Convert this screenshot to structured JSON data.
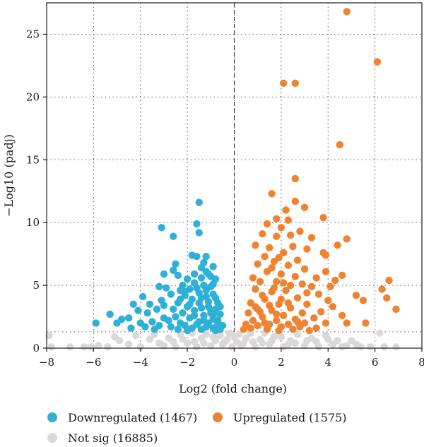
{
  "chart_data": {
    "type": "scatter",
    "title": "",
    "xlabel": "Log2 (fold change)",
    "ylabel": "−Log10 (padj)",
    "xlim": [
      -8,
      8
    ],
    "ylim": [
      0,
      27.5
    ],
    "xticks": [
      -8,
      -6,
      -4,
      -2,
      0,
      2,
      4,
      6,
      8
    ],
    "yticks": [
      0,
      5,
      10,
      15,
      20,
      25
    ],
    "grid": "dotted",
    "threshold_lines": {
      "vertical_x": 0,
      "horizontal_y": 1.3
    },
    "legend_position": "bottom",
    "series": [
      {
        "name": "Downregulated (1467)",
        "color": "#2fb0d6",
        "points": [
          [
            -1.5,
            11.6
          ],
          [
            -1.6,
            9.9
          ],
          [
            -1.5,
            9.2
          ],
          [
            -3.1,
            9.6
          ],
          [
            -2.6,
            8.9
          ],
          [
            -1.8,
            7.4
          ],
          [
            -1.6,
            7.3
          ],
          [
            -1.2,
            7.3
          ],
          [
            -1.3,
            6.8
          ],
          [
            -2.5,
            6.7
          ],
          [
            -2.6,
            6.2
          ],
          [
            -3.0,
            5.9
          ],
          [
            -2.4,
            5.8
          ],
          [
            -1.1,
            5.9
          ],
          [
            -1.0,
            5.7
          ],
          [
            -0.8,
            5.5
          ],
          [
            -1.4,
            5.6
          ],
          [
            -2.0,
            5.5
          ],
          [
            -1.7,
            5.2
          ],
          [
            -2.2,
            5.0
          ],
          [
            -3.2,
            4.9
          ],
          [
            -2.9,
            4.8
          ],
          [
            -2.3,
            4.6
          ],
          [
            -1.9,
            4.7
          ],
          [
            -1.2,
            4.6
          ],
          [
            -2.7,
            4.3
          ],
          [
            -2.1,
            4.2
          ],
          [
            -1.5,
            4.4
          ],
          [
            -0.9,
            4.3
          ],
          [
            -3.9,
            4.1
          ],
          [
            -3.1,
            3.8
          ],
          [
            -1.8,
            3.9
          ],
          [
            -1.1,
            3.7
          ],
          [
            -0.7,
            3.6
          ],
          [
            -2.4,
            3.6
          ],
          [
            -3.6,
            3.5
          ],
          [
            -4.3,
            3.5
          ],
          [
            -3.0,
            3.4
          ],
          [
            -2.0,
            3.3
          ],
          [
            -1.4,
            3.2
          ],
          [
            -0.8,
            3.1
          ],
          [
            -2.6,
            3.1
          ],
          [
            -3.3,
            3.1
          ],
          [
            -4.1,
            3.0
          ],
          [
            -1.7,
            3.0
          ],
          [
            -1.0,
            2.8
          ],
          [
            -2.2,
            2.8
          ],
          [
            -5.3,
            2.7
          ],
          [
            -3.7,
            2.8
          ],
          [
            -0.6,
            2.7
          ],
          [
            -1.3,
            2.6
          ],
          [
            -2.5,
            2.5
          ],
          [
            -3.0,
            2.4
          ],
          [
            -1.9,
            2.4
          ],
          [
            -4.5,
            2.4
          ],
          [
            -4.8,
            2.3
          ],
          [
            -0.9,
            2.3
          ],
          [
            -2.8,
            2.2
          ],
          [
            -3.5,
            2.1
          ],
          [
            -1.5,
            2.1
          ],
          [
            -1.1,
            2.0
          ],
          [
            -2.3,
            2.0
          ],
          [
            -4.0,
            2.0
          ],
          [
            -5.0,
            2.0
          ],
          [
            -5.9,
            2.0
          ],
          [
            -0.7,
            1.9
          ],
          [
            -1.6,
            1.9
          ],
          [
            -3.2,
            1.8
          ],
          [
            -2.1,
            1.8
          ],
          [
            -0.5,
            1.8
          ],
          [
            -1.2,
            1.7
          ],
          [
            -2.7,
            1.7
          ],
          [
            -3.8,
            1.7
          ],
          [
            -4.4,
            1.6
          ],
          [
            -0.9,
            1.6
          ],
          [
            -1.8,
            1.6
          ],
          [
            -0.6,
            1.5
          ],
          [
            -2.4,
            1.5
          ],
          [
            -3.4,
            1.5
          ],
          [
            -1.4,
            1.5
          ],
          [
            -0.8,
            1.4
          ],
          [
            -2.0,
            1.4
          ],
          [
            -1.0,
            4.9
          ],
          [
            -0.9,
            5.1
          ],
          [
            -1.3,
            5.0
          ],
          [
            -1.6,
            4.8
          ],
          [
            -1.2,
            4.1
          ],
          [
            -0.8,
            4.0
          ],
          [
            -1.5,
            3.6
          ],
          [
            -1.7,
            2.6
          ],
          [
            -0.9,
            2.5
          ],
          [
            -1.1,
            3.3
          ],
          [
            -1.4,
            4.0
          ],
          [
            -1.0,
            3.0
          ],
          [
            -0.7,
            2.2
          ],
          [
            -1.3,
            2.2
          ],
          [
            -1.9,
            3.5
          ],
          [
            -2.3,
            3.9
          ],
          [
            -0.6,
            3.3
          ],
          [
            -1.2,
            6.1
          ],
          [
            -1.4,
            6.4
          ],
          [
            -0.9,
            6.5
          ],
          [
            -1.7,
            5.9
          ],
          [
            -2.1,
            4.5
          ],
          [
            -0.8,
            2.9
          ]
        ]
      },
      {
        "name": "Upregulated (1575)",
        "color": "#ee8432",
        "points": [
          [
            4.8,
            26.8
          ],
          [
            6.1,
            22.8
          ],
          [
            2.1,
            21.1
          ],
          [
            2.6,
            21.1
          ],
          [
            4.5,
            16.2
          ],
          [
            2.6,
            13.5
          ],
          [
            1.6,
            12.3
          ],
          [
            2.6,
            11.7
          ],
          [
            2.2,
            11.0
          ],
          [
            3.0,
            11.2
          ],
          [
            1.8,
            10.3
          ],
          [
            2.3,
            10.2
          ],
          [
            3.8,
            10.4
          ],
          [
            1.4,
            9.9
          ],
          [
            2.0,
            9.6
          ],
          [
            2.8,
            9.3
          ],
          [
            1.2,
            9.1
          ],
          [
            2.4,
            9.0
          ],
          [
            3.3,
            8.8
          ],
          [
            1.8,
            8.9
          ],
          [
            4.8,
            8.7
          ],
          [
            4.4,
            8.2
          ],
          [
            0.9,
            8.2
          ],
          [
            1.5,
            8.0
          ],
          [
            2.5,
            8.1
          ],
          [
            3.1,
            7.9
          ],
          [
            2.1,
            7.6
          ],
          [
            3.8,
            7.6
          ],
          [
            1.3,
            7.3
          ],
          [
            3.9,
            7.4
          ],
          [
            2.7,
            7.0
          ],
          [
            1.7,
            6.9
          ],
          [
            1.0,
            6.7
          ],
          [
            2.3,
            6.6
          ],
          [
            3.0,
            6.3
          ],
          [
            3.9,
            6.1
          ],
          [
            4.6,
            5.8
          ],
          [
            1.4,
            6.1
          ],
          [
            2.0,
            5.9
          ],
          [
            2.6,
            5.7
          ],
          [
            3.5,
            5.6
          ],
          [
            4.3,
            5.4
          ],
          [
            0.8,
            5.6
          ],
          [
            1.1,
            5.3
          ],
          [
            1.8,
            5.3
          ],
          [
            2.9,
            5.1
          ],
          [
            3.3,
            4.9
          ],
          [
            4.1,
            4.9
          ],
          [
            6.6,
            5.4
          ],
          [
            6.3,
            4.7
          ],
          [
            0.9,
            4.7
          ],
          [
            1.6,
            4.5
          ],
          [
            2.2,
            4.6
          ],
          [
            3.6,
            4.3
          ],
          [
            5.2,
            4.2
          ],
          [
            5.5,
            3.8
          ],
          [
            6.5,
            4.0
          ],
          [
            6.9,
            3.1
          ],
          [
            4.0,
            3.8
          ],
          [
            2.7,
            4.0
          ],
          [
            1.3,
            3.9
          ],
          [
            0.7,
            3.6
          ],
          [
            1.9,
            3.5
          ],
          [
            3.1,
            3.5
          ],
          [
            4.2,
            3.3
          ],
          [
            2.4,
            3.2
          ],
          [
            1.0,
            3.1
          ],
          [
            1.6,
            3.0
          ],
          [
            3.7,
            2.9
          ],
          [
            2.9,
            2.8
          ],
          [
            0.6,
            2.8
          ],
          [
            2.1,
            2.6
          ],
          [
            4.6,
            2.6
          ],
          [
            1.2,
            2.5
          ],
          [
            3.4,
            2.4
          ],
          [
            2.6,
            2.3
          ],
          [
            1.8,
            2.2
          ],
          [
            0.8,
            2.2
          ],
          [
            5.6,
            2.0
          ],
          [
            4.8,
            2.0
          ],
          [
            3.9,
            2.0
          ],
          [
            3.0,
            2.0
          ],
          [
            2.3,
            1.9
          ],
          [
            1.5,
            1.9
          ],
          [
            0.5,
            1.9
          ],
          [
            1.0,
            1.8
          ],
          [
            2.0,
            1.7
          ],
          [
            2.8,
            1.7
          ],
          [
            3.5,
            1.6
          ],
          [
            0.7,
            1.6
          ],
          [
            1.4,
            1.5
          ],
          [
            2.5,
            1.5
          ],
          [
            0.4,
            1.5
          ],
          [
            1.9,
            1.4
          ],
          [
            3.2,
            1.4
          ],
          [
            1.2,
            4.2
          ],
          [
            1.7,
            4.8
          ],
          [
            2.1,
            5.2
          ],
          [
            1.5,
            3.4
          ],
          [
            2.0,
            3.9
          ],
          [
            1.1,
            2.9
          ],
          [
            1.8,
            2.7
          ],
          [
            2.3,
            3.6
          ],
          [
            0.9,
            3.3
          ],
          [
            1.3,
            2.0
          ],
          [
            2.7,
            2.1
          ],
          [
            1.6,
            6.4
          ],
          [
            2.4,
            5.0
          ],
          [
            3.1,
            4.4
          ],
          [
            1.9,
            7.2
          ]
        ]
      },
      {
        "name": "Not sig (16885)",
        "color": "#dcd8d9",
        "points": [
          [
            -7.9,
            1.0
          ],
          [
            -7.8,
            0.1
          ],
          [
            -6.4,
            0.1
          ],
          [
            -6.1,
            0.1
          ],
          [
            -5.1,
            0.9
          ],
          [
            -5.4,
            0.1
          ],
          [
            -4.9,
            0.6
          ],
          [
            -4.5,
            0.3
          ],
          [
            -4.0,
            0.1
          ],
          [
            -3.6,
            0.7
          ],
          [
            -3.4,
            1.1
          ],
          [
            -3.0,
            0.2
          ],
          [
            -2.8,
            0.8
          ],
          [
            -2.5,
            0.1
          ],
          [
            -2.3,
            1.1
          ],
          [
            -2.0,
            0.4
          ],
          [
            -1.8,
            1.2
          ],
          [
            -1.6,
            0.1
          ],
          [
            -1.4,
            0.8
          ],
          [
            -1.2,
            1.1
          ],
          [
            -1.0,
            0.2
          ],
          [
            -0.8,
            0.6
          ],
          [
            -0.6,
            1.0
          ],
          [
            -0.5,
            0.3
          ],
          [
            -0.3,
            0.7
          ],
          [
            -0.2,
            1.2
          ],
          [
            -0.1,
            0.1
          ],
          [
            0.1,
            0.5
          ],
          [
            0.2,
            1.1
          ],
          [
            0.3,
            0.2
          ],
          [
            0.5,
            0.8
          ],
          [
            0.7,
            1.2
          ],
          [
            0.9,
            0.1
          ],
          [
            1.1,
            0.7
          ],
          [
            1.3,
            1.2
          ],
          [
            1.5,
            0.3
          ],
          [
            1.7,
            0.9
          ],
          [
            1.9,
            1.2
          ],
          [
            2.1,
            0.1
          ],
          [
            2.4,
            0.6
          ],
          [
            2.7,
            1.1
          ],
          [
            3.0,
            0.2
          ],
          [
            3.3,
            0.8
          ],
          [
            3.6,
            0.1
          ],
          [
            3.9,
            1.0
          ],
          [
            4.2,
            0.3
          ],
          [
            4.6,
            0.1
          ],
          [
            5.0,
            0.6
          ],
          [
            5.4,
            0.1
          ],
          [
            5.8,
            0.1
          ],
          [
            6.2,
            1.2
          ],
          [
            6.4,
            0.1
          ],
          [
            6.9,
            0.1
          ],
          [
            -7.0,
            0.1
          ],
          [
            -5.8,
            0.2
          ],
          [
            -4.2,
            1.0
          ],
          [
            -3.2,
            0.4
          ],
          [
            -2.6,
            0.5
          ],
          [
            -2.2,
            0.7
          ],
          [
            -1.7,
            0.5
          ],
          [
            -1.3,
            0.4
          ],
          [
            -0.9,
            0.9
          ],
          [
            -0.4,
            0.5
          ],
          [
            0.0,
            0.9
          ],
          [
            0.4,
            0.4
          ],
          [
            0.8,
            0.5
          ],
          [
            1.2,
            0.4
          ],
          [
            1.6,
            0.6
          ],
          [
            2.0,
            0.9
          ],
          [
            2.3,
            0.3
          ],
          [
            2.6,
            0.4
          ],
          [
            3.1,
            0.6
          ],
          [
            3.5,
            0.5
          ],
          [
            4.0,
            0.7
          ],
          [
            4.4,
            0.6
          ],
          [
            4.8,
            0.2
          ],
          [
            5.2,
            0.3
          ]
        ]
      }
    ]
  }
}
